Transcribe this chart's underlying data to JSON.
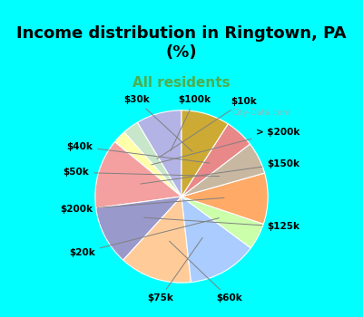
{
  "title": "Income distribution in Ringtown, PA\n(%)",
  "subtitle": "All residents",
  "title_color": "#000000",
  "subtitle_color": "#4CAF50",
  "bg_top": "#00FFFF",
  "bg_chart": "#e8f5e9",
  "labels": [
    "$100k",
    "$10k",
    "> $200k",
    "$150k",
    "$125k",
    "$60k",
    "$75k",
    "$20k",
    "$200k",
    "$50k",
    "$40k",
    "$30k"
  ],
  "values": [
    8.5,
    3.0,
    2.5,
    13.0,
    11.0,
    13.5,
    13.0,
    5.0,
    9.5,
    6.0,
    5.5,
    9.0
  ],
  "colors": [
    "#b3b3e6",
    "#c8e6c9",
    "#ffffaa",
    "#f4a0a0",
    "#9999cc",
    "#ffcc99",
    "#aaccff",
    "#ccffaa",
    "#ffaa66",
    "#c8b8a2",
    "#e88888",
    "#ccaa33"
  ],
  "label_fontsize": 7.5,
  "watermark": "City-Data.com"
}
